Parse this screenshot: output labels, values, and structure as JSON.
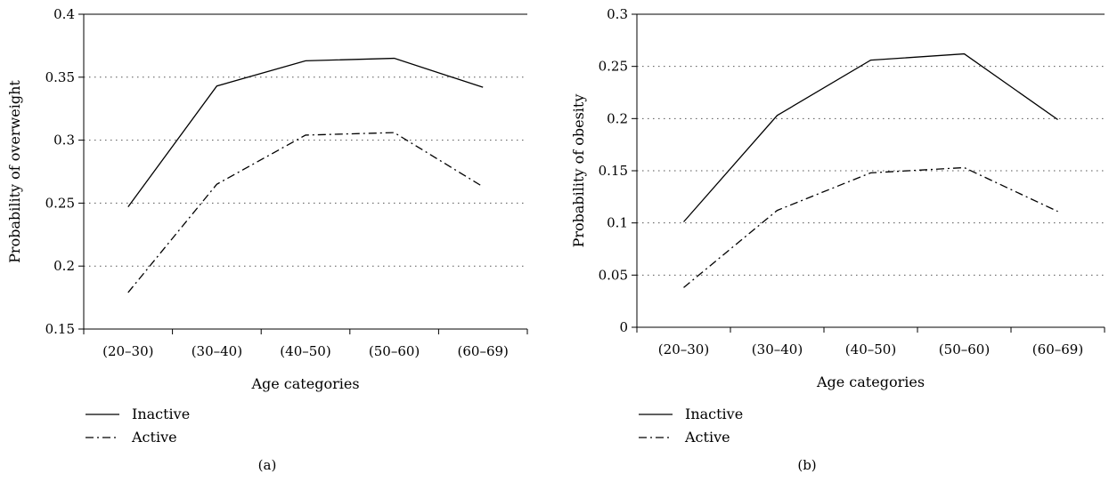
{
  "chart_data": [
    {
      "type": "line",
      "panel_label": "(a)",
      "categories": [
        "(20–30)",
        "(30–40)",
        "(40–50)",
        "(50–60)",
        "(60–69)"
      ],
      "xlabel": "Age categories",
      "ylabel": "Probability of overweight",
      "ylim": [
        0.15,
        0.4
      ],
      "yticks": [
        "0.15",
        "0.2",
        "0.25",
        "0.3",
        "0.35",
        "0.4"
      ],
      "grid": "dotted horizontal",
      "legend_position": "bottom-left",
      "series": [
        {
          "name": "Inactive",
          "style": "solid",
          "values": [
            0.247,
            0.343,
            0.363,
            0.365,
            0.342
          ]
        },
        {
          "name": "Active",
          "style": "dash-dot",
          "values": [
            0.179,
            0.265,
            0.304,
            0.306,
            0.263
          ]
        }
      ]
    },
    {
      "type": "line",
      "panel_label": "(b)",
      "categories": [
        "(20–30)",
        "(30–40)",
        "(40–50)",
        "(50–60)",
        "(60–69)"
      ],
      "xlabel": "Age categories",
      "ylabel": "Probability of obesity",
      "ylim": [
        0,
        0.3
      ],
      "yticks": [
        "0",
        "0.05",
        "0.1",
        "0.15",
        "0.2",
        "0.25",
        "0.3"
      ],
      "grid": "dotted horizontal",
      "legend_position": "bottom-left",
      "series": [
        {
          "name": "Inactive",
          "style": "solid",
          "values": [
            0.101,
            0.203,
            0.256,
            0.262,
            0.199
          ]
        },
        {
          "name": "Active",
          "style": "dash-dot",
          "values": [
            0.038,
            0.112,
            0.148,
            0.153,
            0.111
          ]
        }
      ]
    }
  ]
}
